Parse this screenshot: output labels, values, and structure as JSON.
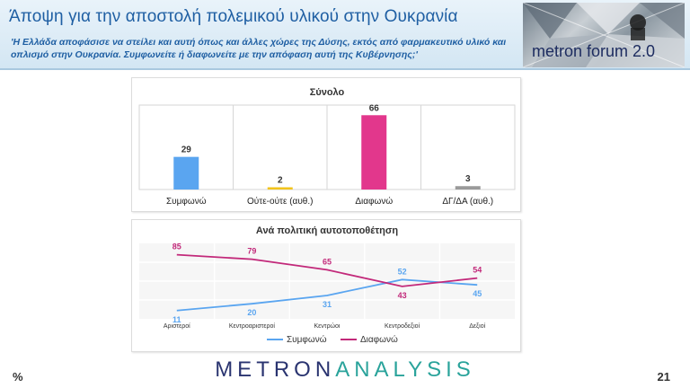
{
  "header": {
    "title": "Άποψη για την αποστολή πολεμικού υλικού στην Ουκρανία",
    "subtitle": "'Η Ελλάδα αποφάσισε να στείλει και αυτή όπως και άλλες χώρες της Δύσης, εκτός από φαρμακευτικό υλικό και οπλισμό στην Ουκρανία. Συμφωνείτε ή διαφωνείτε με την απόφαση αυτή της Κυβέρνησης;'",
    "forum_label": "metron forum 2.0"
  },
  "chart_data": [
    {
      "type": "bar",
      "title": "Σύνολο",
      "categories": [
        "Συμφωνώ",
        "Ούτε-ούτε (αυθ.)",
        "Διαφωνώ",
        "ΔΓ/ΔΑ (αυθ.)"
      ],
      "values": [
        29,
        2,
        66,
        3
      ],
      "colors": [
        "#5aa5f0",
        "#f2c31b",
        "#e2378c",
        "#9a9a9a"
      ],
      "ylim": [
        0,
        75
      ],
      "grid": true
    },
    {
      "type": "line",
      "title": "Ανά πολιτική αυτοτοποθέτηση",
      "categories": [
        "Αριστεροί",
        "Κεντροαριστεροί",
        "Κεντρώοι",
        "Κεντροδεξιοί",
        "Δεξιοί"
      ],
      "series": [
        {
          "name": "Συμφωνώ",
          "values": [
            11,
            20,
            31,
            52,
            45
          ],
          "color": "#5aa5f0"
        },
        {
          "name": "Διαφωνώ",
          "values": [
            85,
            79,
            65,
            43,
            54
          ],
          "color": "#c2297a"
        }
      ],
      "ylim": [
        0,
        100
      ],
      "legend": "bottom",
      "grid": true
    }
  ],
  "footer": {
    "unit": "%",
    "brand_main": "METRON",
    "brand_accent": "ANALYSIS",
    "page": "21"
  }
}
